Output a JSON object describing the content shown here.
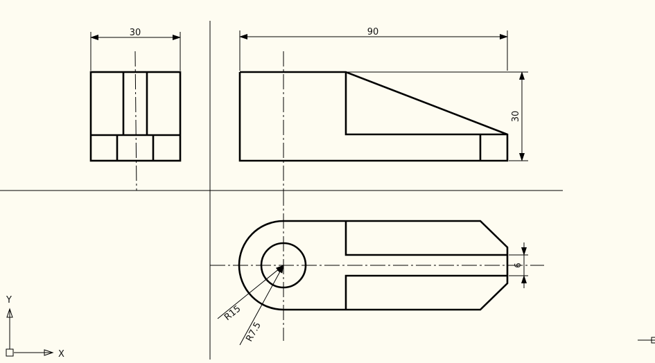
{
  "drawing": {
    "dims": {
      "side_width": "30",
      "front_length": "90",
      "front_height": "30",
      "slot_width": "6",
      "outer_radius": "R15",
      "hole_radius": "R7.5"
    },
    "ucs": {
      "x_label": "X",
      "y_label": "Y"
    }
  }
}
